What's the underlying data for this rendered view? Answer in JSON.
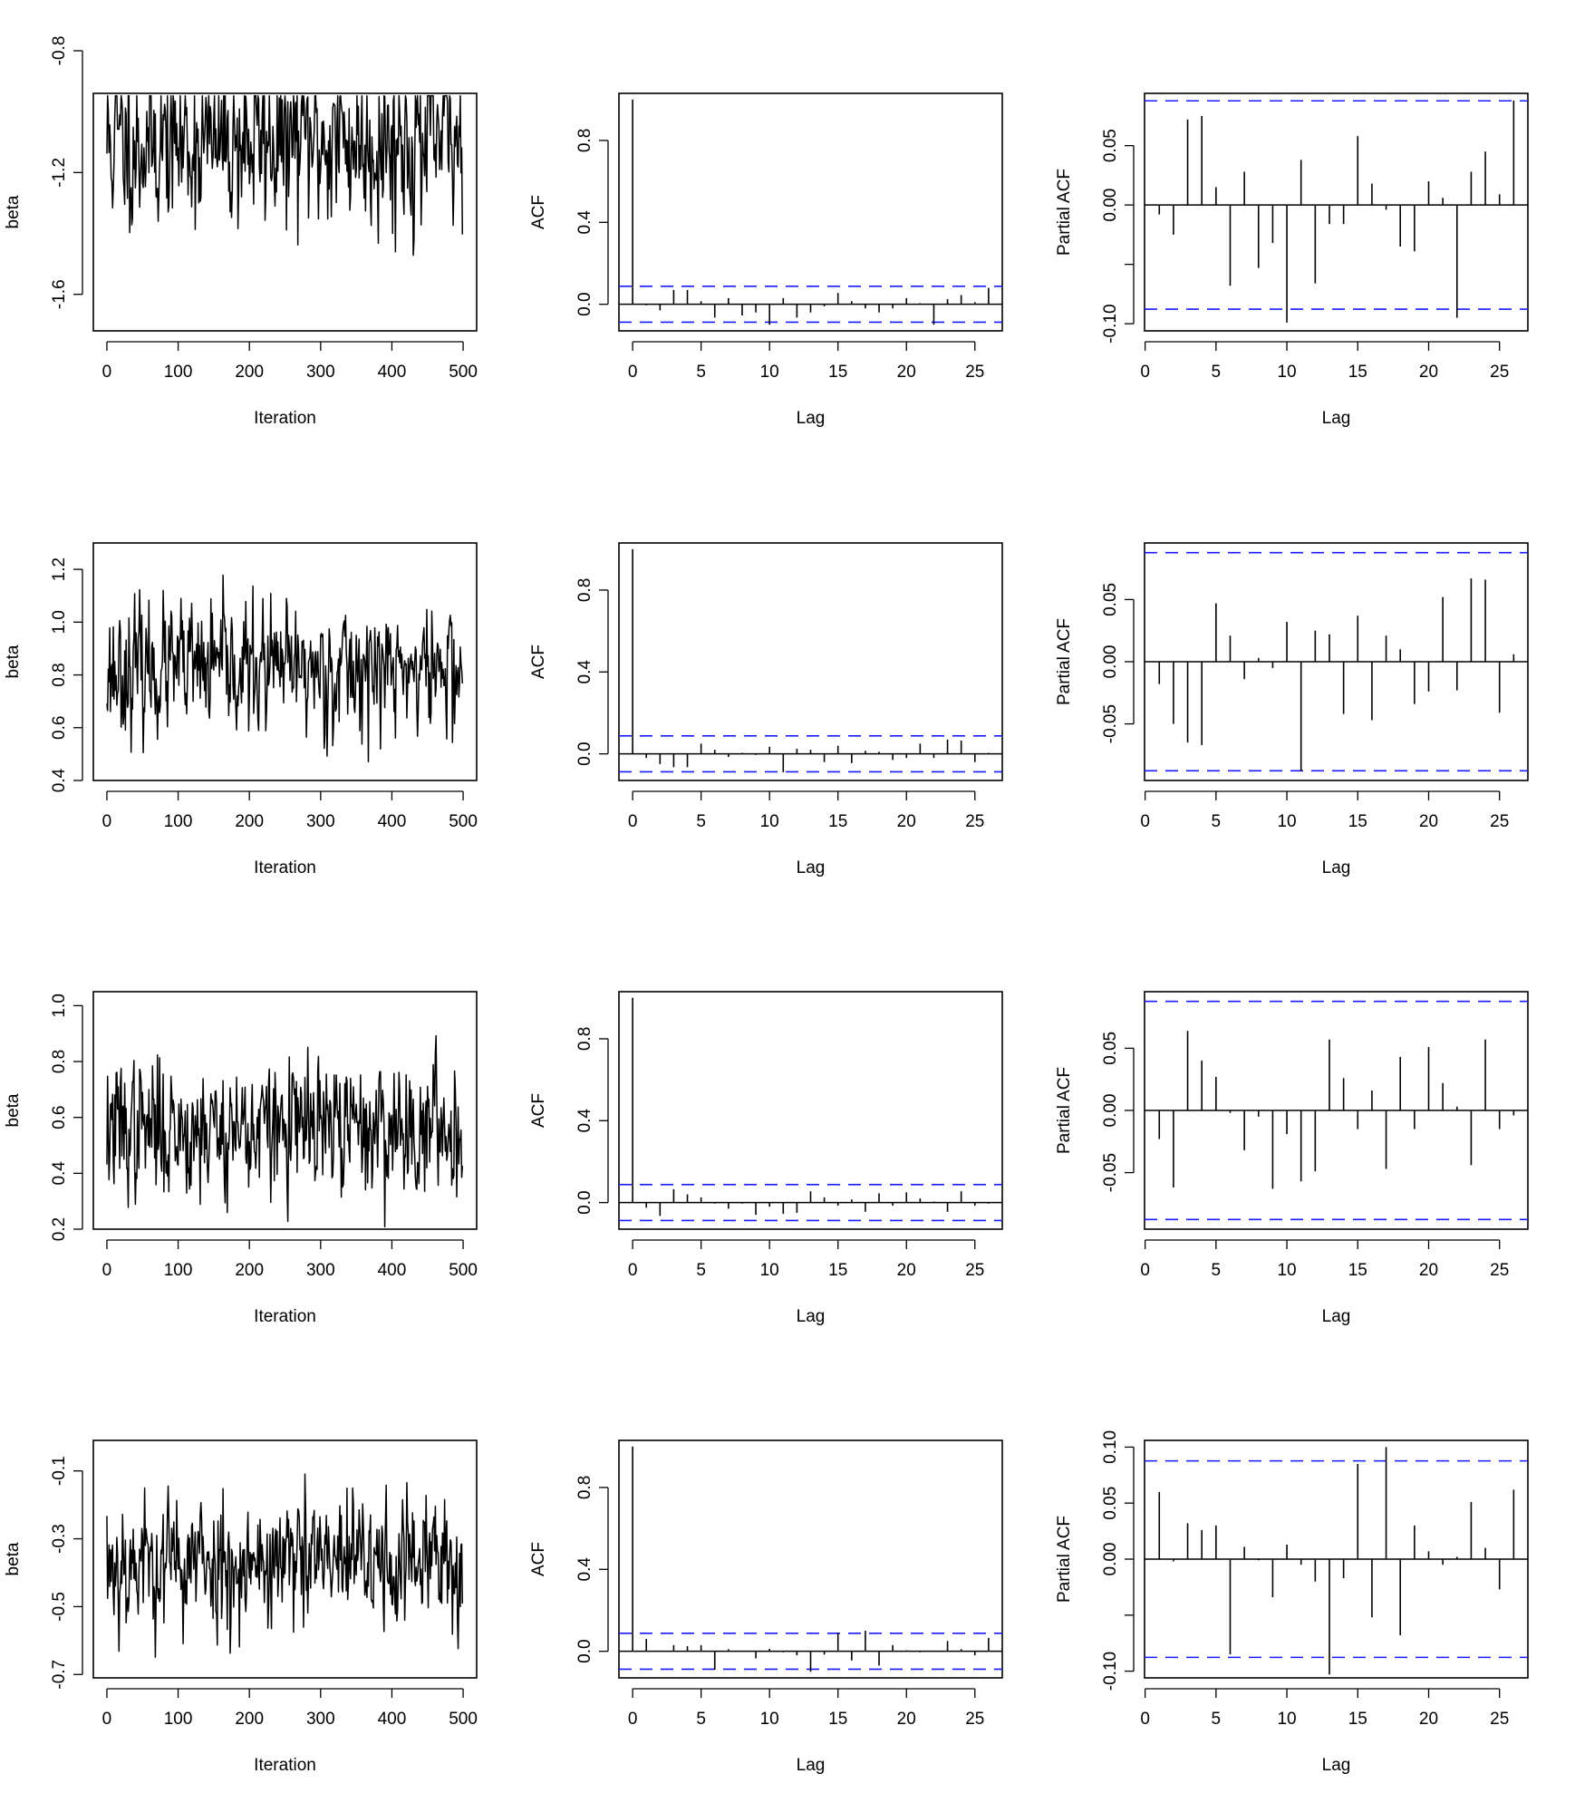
{
  "chart_data": [
    {
      "type": "line",
      "row": 1,
      "kind": "trace",
      "title": "",
      "xlabel": "Iteration",
      "ylabel": "beta",
      "xlim": [
        -19,
        519
      ],
      "ylim": [
        -1.72,
        -0.94
      ],
      "xticks": [
        0,
        100,
        200,
        300,
        400,
        500
      ],
      "yticks": [
        -0.8,
        -1.2,
        -1.6
      ],
      "ytick_labels": [
        "-0.8",
        "-1.2",
        "-1.6"
      ],
      "mean": -1.1,
      "sd": 0.14,
      "n": 500,
      "seed": 11
    },
    {
      "type": "bar",
      "row": 1,
      "kind": "acf",
      "title": "",
      "xlabel": "Lag",
      "ylabel": "ACF",
      "xlim": [
        -1,
        27
      ],
      "ylim": [
        -0.13,
        1.03
      ],
      "xticks": [
        0,
        5,
        10,
        15,
        20,
        25
      ],
      "yticks": [
        0.0,
        0.4,
        0.8
      ],
      "ytick_labels": [
        "0.0",
        "0.4",
        "0.8"
      ],
      "ci": 0.0877,
      "lags": [
        0,
        1,
        2,
        3,
        4,
        5,
        6,
        7,
        8,
        9,
        10,
        11,
        12,
        13,
        14,
        15,
        16,
        17,
        18,
        19,
        20,
        21,
        22,
        23,
        24,
        25,
        26
      ],
      "values": [
        1.0,
        -0.005,
        -0.03,
        0.07,
        0.07,
        0.015,
        -0.065,
        0.03,
        -0.055,
        -0.04,
        -0.1,
        0.03,
        -0.065,
        -0.04,
        -0.01,
        0.055,
        0.015,
        -0.02,
        -0.04,
        -0.02,
        0.03,
        0.005,
        -0.1,
        0.025,
        0.045,
        0.01,
        0.08
      ]
    },
    {
      "type": "bar",
      "row": 1,
      "kind": "pacf",
      "title": "",
      "xlabel": "Lag",
      "ylabel": "Partial ACF",
      "xlim": [
        -0.04,
        27
      ],
      "ylim": [
        -0.106,
        0.094
      ],
      "xticks": [
        0,
        5,
        10,
        15,
        20,
        25
      ],
      "yticks": [
        0.05,
        0.0,
        -0.05,
        -0.1
      ],
      "ytick_labels": [
        "0.05",
        "0.00",
        "",
        "-0.10"
      ],
      "ci": 0.0877,
      "lags": [
        1,
        2,
        3,
        4,
        5,
        6,
        7,
        8,
        9,
        10,
        11,
        12,
        13,
        14,
        15,
        16,
        17,
        18,
        19,
        20,
        21,
        22,
        23,
        24,
        25,
        26
      ],
      "values": [
        -0.008,
        -0.025,
        0.072,
        0.075,
        0.015,
        -0.068,
        0.028,
        -0.053,
        -0.032,
        -0.099,
        0.038,
        -0.066,
        -0.016,
        -0.016,
        0.058,
        0.018,
        -0.004,
        -0.035,
        -0.039,
        0.02,
        0.006,
        -0.095,
        0.028,
        0.045,
        0.009,
        0.088
      ]
    },
    {
      "type": "line",
      "row": 2,
      "kind": "trace",
      "title": "",
      "xlabel": "Iteration",
      "ylabel": "beta",
      "xlim": [
        -19,
        519
      ],
      "ylim": [
        0.4,
        1.3
      ],
      "xticks": [
        0,
        100,
        200,
        300,
        400,
        500
      ],
      "yticks": [
        0.4,
        0.6,
        0.8,
        1.0,
        1.2
      ],
      "ytick_labels": [
        "0.4",
        "0.6",
        "0.8",
        "1.0",
        "1.2"
      ],
      "mean": 0.82,
      "sd": 0.12,
      "n": 500,
      "seed": 23
    },
    {
      "type": "bar",
      "row": 2,
      "kind": "acf",
      "title": "",
      "xlabel": "Lag",
      "ylabel": "ACF",
      "xlim": [
        -1,
        27
      ],
      "ylim": [
        -0.13,
        1.03
      ],
      "xticks": [
        0,
        5,
        10,
        15,
        20,
        25
      ],
      "yticks": [
        0.0,
        0.4,
        0.8
      ],
      "ytick_labels": [
        "0.0",
        "0.4",
        "0.8"
      ],
      "ci": 0.0877,
      "lags": [
        0,
        1,
        2,
        3,
        4,
        5,
        6,
        7,
        8,
        9,
        10,
        11,
        12,
        13,
        14,
        15,
        16,
        17,
        18,
        19,
        20,
        21,
        22,
        23,
        24,
        25,
        26
      ],
      "values": [
        1.0,
        -0.02,
        -0.05,
        -0.065,
        -0.065,
        0.05,
        0.02,
        -0.015,
        0.005,
        -0.005,
        0.035,
        -0.09,
        0.025,
        0.02,
        -0.04,
        0.04,
        -0.045,
        0.015,
        0.01,
        -0.03,
        -0.02,
        0.05,
        -0.02,
        0.07,
        0.065,
        -0.04,
        0.005
      ]
    },
    {
      "type": "bar",
      "row": 2,
      "kind": "pacf",
      "title": "",
      "xlabel": "Lag",
      "ylabel": "Partial ACF",
      "xlim": [
        -0.04,
        27
      ],
      "ylim": [
        -0.0955,
        0.0955
      ],
      "xticks": [
        0,
        5,
        10,
        15,
        20,
        25
      ],
      "yticks": [
        0.05,
        0.0,
        -0.05
      ],
      "ytick_labels": [
        "0.05",
        "0.00",
        "-0.05"
      ],
      "ci": 0.0877,
      "lags": [
        1,
        2,
        3,
        4,
        5,
        6,
        7,
        8,
        9,
        10,
        11,
        12,
        13,
        14,
        15,
        16,
        17,
        18,
        19,
        20,
        21,
        22,
        23,
        24,
        25,
        26
      ],
      "values": [
        -0.018,
        -0.05,
        -0.065,
        -0.067,
        0.047,
        0.021,
        -0.014,
        0.003,
        -0.005,
        0.032,
        -0.088,
        0.025,
        0.022,
        -0.042,
        0.037,
        -0.047,
        0.021,
        0.01,
        -0.034,
        -0.024,
        0.052,
        -0.023,
        0.067,
        0.066,
        -0.041,
        0.006
      ]
    },
    {
      "type": "line",
      "row": 3,
      "kind": "trace",
      "title": "",
      "xlabel": "Iteration",
      "ylabel": "beta",
      "xlim": [
        -19,
        519
      ],
      "ylim": [
        0.2,
        1.05
      ],
      "xticks": [
        0,
        100,
        200,
        300,
        400,
        500
      ],
      "yticks": [
        0.2,
        0.4,
        0.6,
        0.8,
        1.0
      ],
      "ytick_labels": [
        "0.2",
        "0.4",
        "0.6",
        "0.8",
        "1.0"
      ],
      "mean": 0.56,
      "sd": 0.12,
      "n": 500,
      "seed": 37
    },
    {
      "type": "bar",
      "row": 3,
      "kind": "acf",
      "title": "",
      "xlabel": "Lag",
      "ylabel": "ACF",
      "xlim": [
        -1,
        27
      ],
      "ylim": [
        -0.13,
        1.03
      ],
      "xticks": [
        0,
        5,
        10,
        15,
        20,
        25
      ],
      "yticks": [
        0.0,
        0.4,
        0.8
      ],
      "ytick_labels": [
        "0.0",
        "0.4",
        "0.8"
      ],
      "ci": 0.0877,
      "lags": [
        0,
        1,
        2,
        3,
        4,
        5,
        6,
        7,
        8,
        9,
        10,
        11,
        12,
        13,
        14,
        15,
        16,
        17,
        18,
        19,
        20,
        21,
        22,
        23,
        24,
        25,
        26
      ],
      "values": [
        1.0,
        -0.025,
        -0.065,
        0.065,
        0.04,
        0.025,
        -0.005,
        -0.03,
        -0.005,
        -0.06,
        -0.02,
        -0.055,
        -0.05,
        0.055,
        0.025,
        -0.015,
        0.015,
        -0.045,
        0.045,
        -0.015,
        0.05,
        0.02,
        0.005,
        -0.045,
        0.055,
        -0.015,
        -0.005
      ]
    },
    {
      "type": "bar",
      "row": 3,
      "kind": "pacf",
      "title": "",
      "xlabel": "Lag",
      "ylabel": "Partial ACF",
      "xlim": [
        -0.04,
        27
      ],
      "ylim": [
        -0.0955,
        0.0955
      ],
      "xticks": [
        0,
        5,
        10,
        15,
        20,
        25
      ],
      "yticks": [
        0.05,
        0.0,
        -0.05
      ],
      "ytick_labels": [
        "0.05",
        "0.00",
        "-0.05"
      ],
      "ci": 0.0877,
      "lags": [
        1,
        2,
        3,
        4,
        5,
        6,
        7,
        8,
        9,
        10,
        11,
        12,
        13,
        14,
        15,
        16,
        17,
        18,
        19,
        20,
        21,
        22,
        23,
        24,
        25,
        26
      ],
      "values": [
        -0.023,
        -0.062,
        0.064,
        0.04,
        0.027,
        -0.002,
        -0.032,
        -0.005,
        -0.063,
        -0.019,
        -0.057,
        -0.049,
        0.057,
        0.026,
        -0.015,
        0.016,
        -0.047,
        0.043,
        -0.015,
        0.051,
        0.022,
        0.003,
        -0.044,
        0.057,
        -0.015,
        -0.004
      ]
    },
    {
      "type": "line",
      "row": 4,
      "kind": "trace",
      "title": "",
      "xlabel": "Iteration",
      "ylabel": "beta",
      "xlim": [
        -19,
        519
      ],
      "ylim": [
        -0.71,
        -0.01
      ],
      "xticks": [
        0,
        100,
        200,
        300,
        400,
        500
      ],
      "yticks": [
        -0.1,
        -0.3,
        -0.5,
        -0.7
      ],
      "ytick_labels": [
        "-0.1",
        "-0.3",
        "-0.5",
        "-0.7"
      ],
      "mean": -0.37,
      "sd": 0.1,
      "n": 500,
      "seed": 53
    },
    {
      "type": "bar",
      "row": 4,
      "kind": "acf",
      "title": "",
      "xlabel": "Lag",
      "ylabel": "ACF",
      "xlim": [
        -1,
        27
      ],
      "ylim": [
        -0.13,
        1.03
      ],
      "xticks": [
        0,
        5,
        10,
        15,
        20,
        25
      ],
      "yticks": [
        0.0,
        0.4,
        0.8
      ],
      "ytick_labels": [
        "0.0",
        "0.4",
        "0.8"
      ],
      "ci": 0.0877,
      "lags": [
        0,
        1,
        2,
        3,
        4,
        5,
        6,
        7,
        8,
        9,
        10,
        11,
        12,
        13,
        14,
        15,
        16,
        17,
        18,
        19,
        20,
        21,
        22,
        23,
        24,
        25,
        26
      ],
      "values": [
        1.0,
        0.06,
        -0.002,
        0.03,
        0.025,
        0.03,
        -0.09,
        0.01,
        -0.002,
        -0.035,
        0.012,
        -0.005,
        -0.02,
        -0.1,
        -0.016,
        0.09,
        -0.045,
        0.1,
        -0.07,
        0.03,
        0.005,
        -0.005,
        0.002,
        0.05,
        0.01,
        -0.02,
        0.065
      ]
    },
    {
      "type": "bar",
      "row": 4,
      "kind": "pacf",
      "title": "",
      "xlabel": "Lag",
      "ylabel": "Partial ACF",
      "xlim": [
        -0.04,
        27
      ],
      "ylim": [
        -0.106,
        0.106
      ],
      "xticks": [
        0,
        5,
        10,
        15,
        20,
        25
      ],
      "yticks": [
        0.1,
        0.05,
        0.0,
        -0.05,
        -0.1
      ],
      "ytick_labels": [
        "0.10",
        "0.05",
        "0.00",
        "",
        "-0.10"
      ],
      "ci": 0.0877,
      "lags": [
        1,
        2,
        3,
        4,
        5,
        6,
        7,
        8,
        9,
        10,
        11,
        12,
        13,
        14,
        15,
        16,
        17,
        18,
        19,
        20,
        21,
        22,
        23,
        24,
        25,
        26
      ],
      "values": [
        0.06,
        -0.002,
        0.032,
        0.026,
        0.03,
        -0.085,
        0.011,
        -0.001,
        -0.034,
        0.013,
        -0.005,
        -0.02,
        -0.103,
        -0.017,
        0.085,
        -0.052,
        0.1,
        -0.068,
        0.03,
        0.007,
        -0.005,
        0.002,
        0.051,
        0.01,
        -0.027,
        0.062
      ]
    }
  ],
  "colors": {
    "series": "#000000",
    "ci": "#1a1aff",
    "axis": "#000000"
  }
}
